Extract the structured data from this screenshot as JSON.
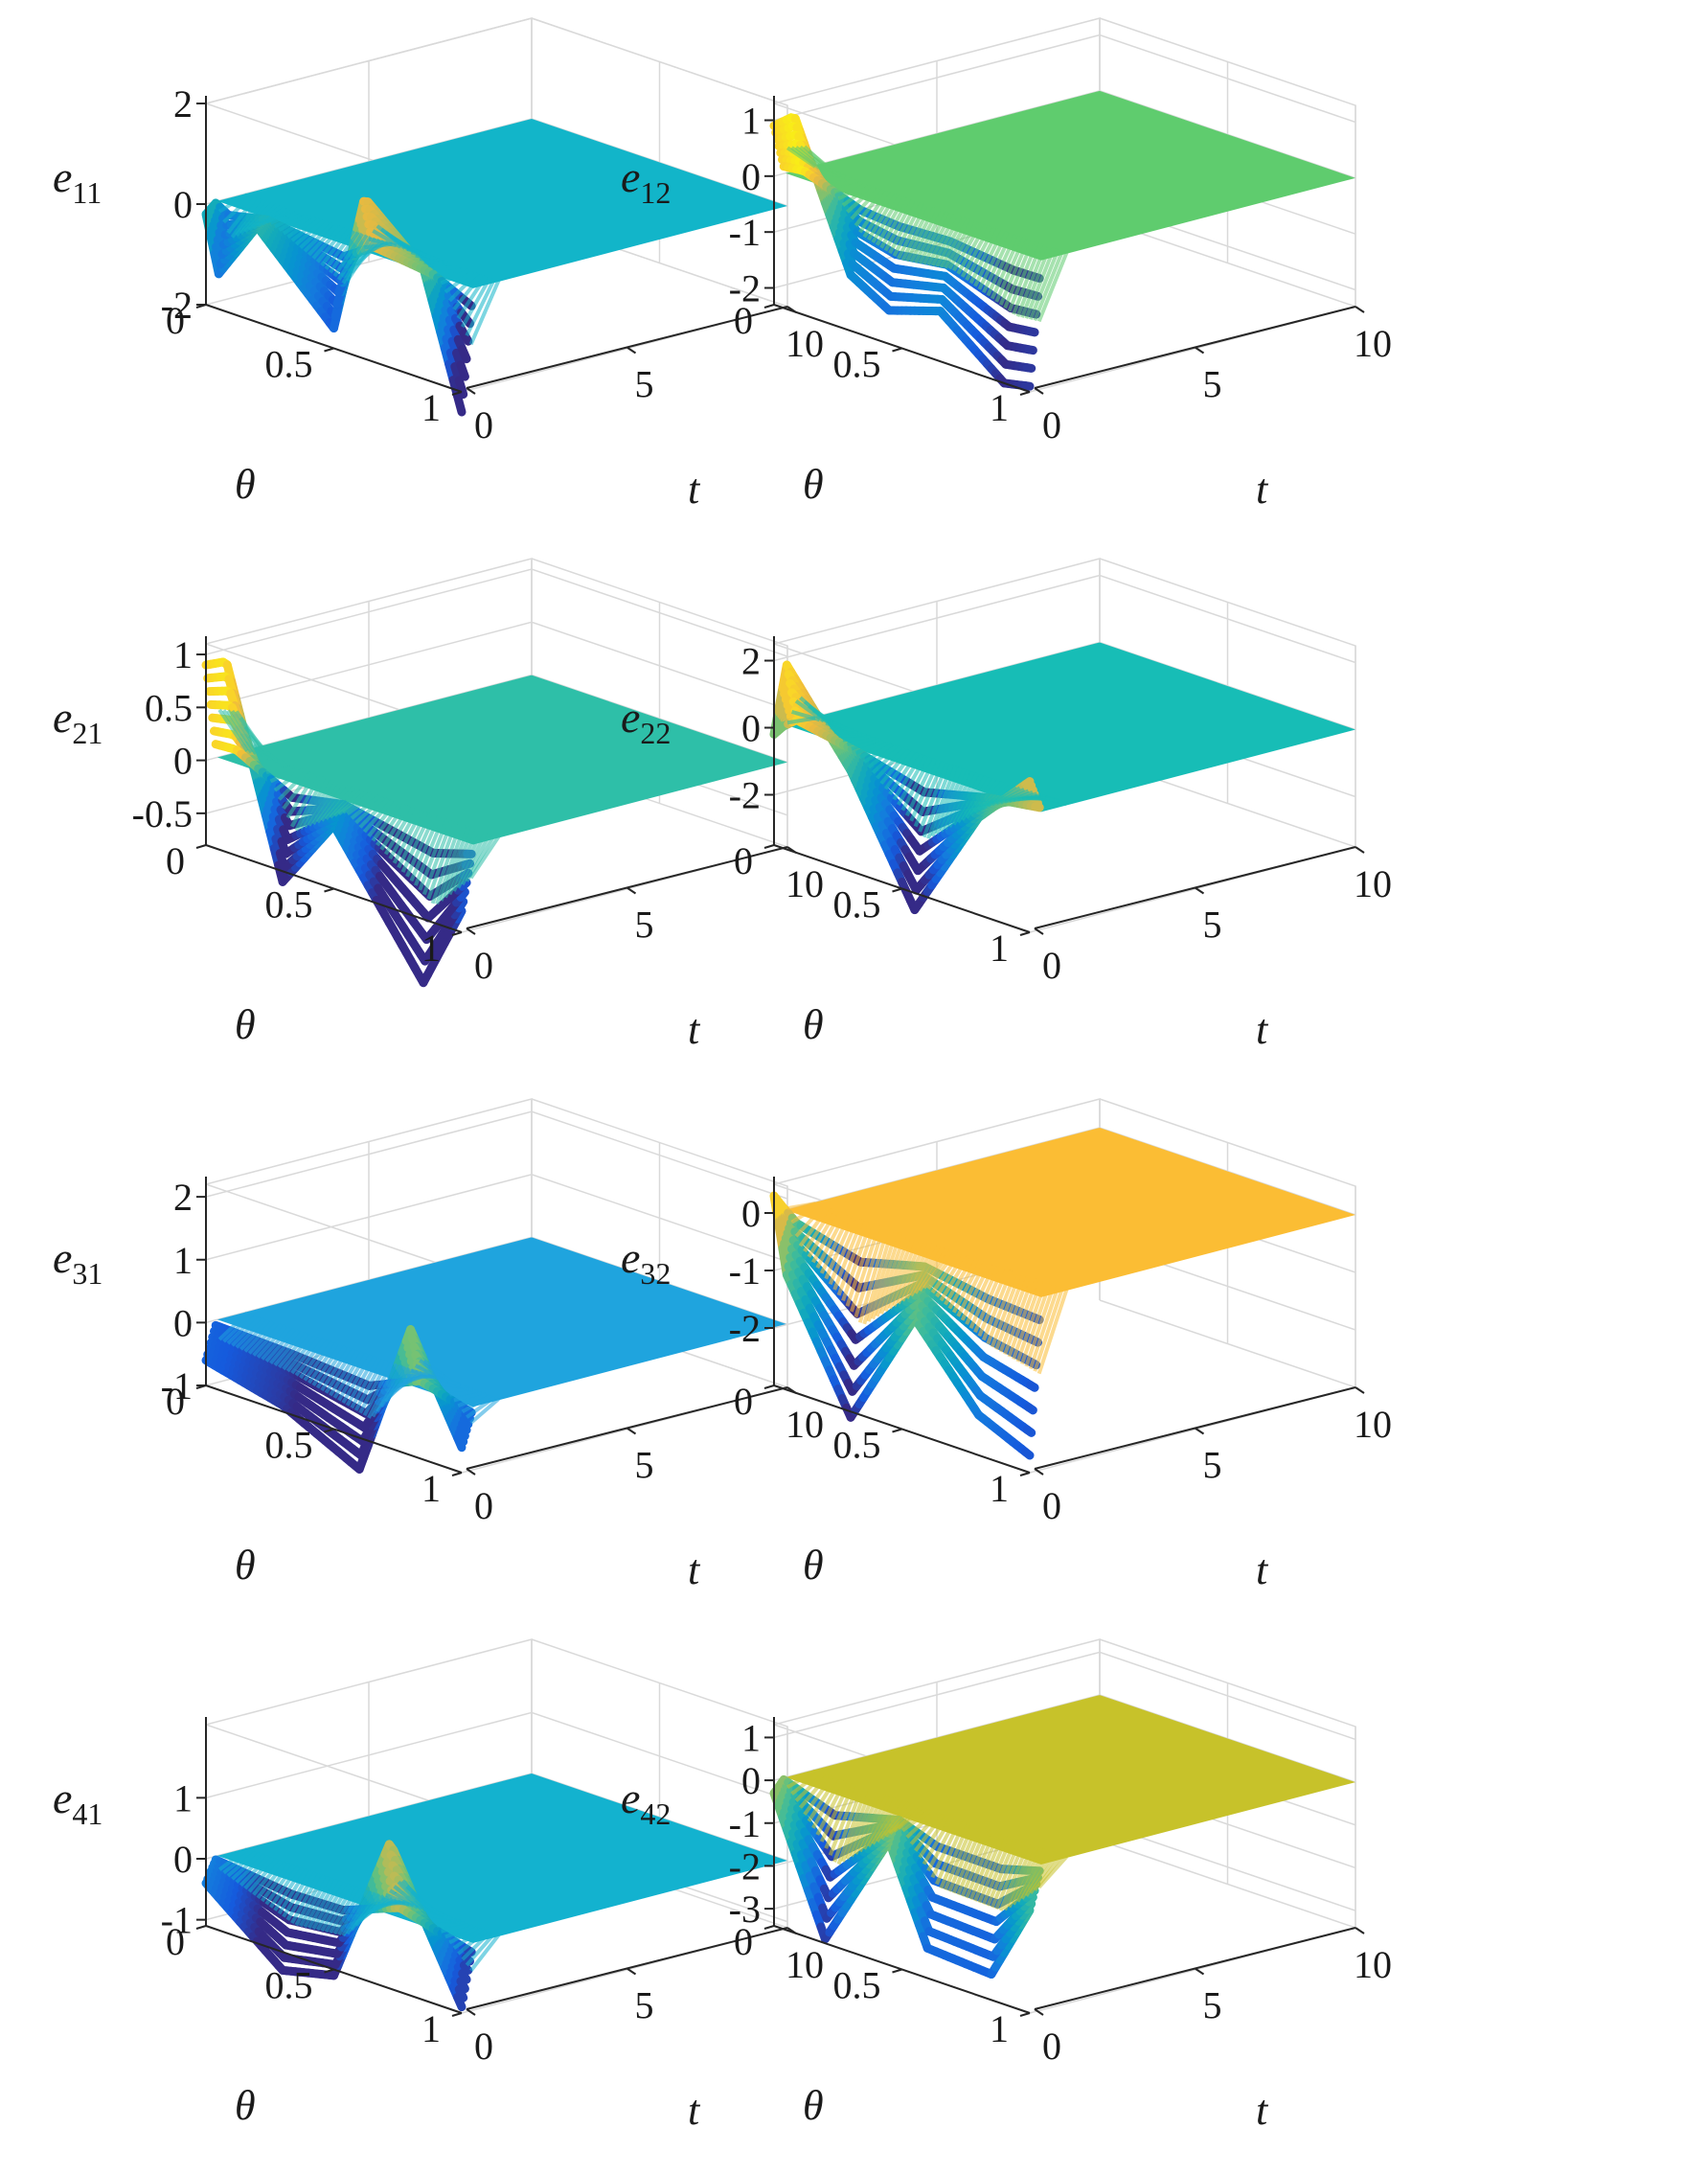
{
  "chart_data": [
    {
      "type": "surface",
      "zlabel_main": "e",
      "zlabel_sub": "11",
      "xlabel": "θ",
      "ylabel": "t",
      "xticks": [
        "0",
        "0.5",
        "1"
      ],
      "yticks": [
        "0",
        "5",
        "10"
      ],
      "zticks": [
        "-2",
        "0",
        "2"
      ],
      "xlim": [
        0,
        1
      ],
      "ylim": [
        0,
        10
      ],
      "zlim": [
        -2,
        2
      ],
      "steady_value": 0,
      "steady_color": "#12b5c9",
      "initial_profile": {
        "theta": [
          0,
          0.05,
          0.2,
          0.5,
          0.62,
          0.85,
          1
        ],
        "values": [
          -0.2,
          -1.3,
          -0.1,
          -1.6,
          1.2,
          0.2,
          -2.4
        ]
      }
    },
    {
      "type": "surface",
      "zlabel_main": "e",
      "zlabel_sub": "12",
      "xlabel": "θ",
      "ylabel": "t",
      "xticks": [
        "0",
        "0.5",
        "1"
      ],
      "yticks": [
        "0",
        "5",
        "10"
      ],
      "zticks": [
        "-2",
        "-1",
        "0",
        "1"
      ],
      "xlim": [
        0,
        1
      ],
      "ylim": [
        0,
        10
      ],
      "zlim": [
        -2.3,
        1.3
      ],
      "steady_value": 0,
      "steady_color": "#5fcc6e",
      "initial_profile": {
        "theta": [
          0,
          0.08,
          0.3,
          0.45,
          0.65,
          0.9,
          1
        ],
        "values": [
          0.9,
          1.2,
          -1.3,
          -1.7,
          -1.4,
          -2.3,
          -2.2
        ]
      }
    },
    {
      "type": "surface",
      "zlabel_main": "e",
      "zlabel_sub": "21",
      "xlabel": "θ",
      "ylabel": "t",
      "xticks": [
        "0",
        "0.5",
        "1"
      ],
      "yticks": [
        "0",
        "5",
        "10"
      ],
      "zticks": [
        "-0.5",
        "0",
        "0.5",
        "1"
      ],
      "xlim": [
        0,
        1
      ],
      "ylim": [
        0,
        10
      ],
      "zlim": [
        -0.8,
        1.1
      ],
      "steady_value": 0,
      "steady_color": "#2ebfa8",
      "initial_profile": {
        "theta": [
          0,
          0.08,
          0.3,
          0.5,
          0.85,
          1
        ],
        "values": [
          0.9,
          1.0,
          -0.9,
          -0.2,
          -1.4,
          -0.6
        ]
      }
    },
    {
      "type": "surface",
      "zlabel_main": "e",
      "zlabel_sub": "22",
      "xlabel": "θ",
      "ylabel": "t",
      "xticks": [
        "0",
        "0.5",
        "1"
      ],
      "yticks": [
        "0",
        "5",
        "10"
      ],
      "zticks": [
        "-2",
        "0",
        "2"
      ],
      "xlim": [
        0,
        1
      ],
      "ylim": [
        0,
        10
      ],
      "zlim": [
        -3.5,
        2.5
      ],
      "steady_value": 0,
      "steady_color": "#17bdb6",
      "initial_profile": {
        "theta": [
          0,
          0.05,
          0.3,
          0.55,
          0.8,
          1
        ],
        "values": [
          -0.2,
          2.0,
          -0.5,
          -4.0,
          -0.6,
          1.0
        ]
      }
    },
    {
      "type": "surface",
      "zlabel_main": "e",
      "zlabel_sub": "31",
      "xlabel": "θ",
      "ylabel": "t",
      "xticks": [
        "0",
        "0.5",
        "1"
      ],
      "yticks": [
        "0",
        "5",
        "10"
      ],
      "zticks": [
        "-1",
        "0",
        "1",
        "2"
      ],
      "xlim": [
        0,
        1
      ],
      "ylim": [
        0,
        10
      ],
      "zlim": [
        -1,
        2.2
      ],
      "steady_value": 0,
      "steady_color": "#1fa4de",
      "initial_profile": {
        "theta": [
          0,
          0.3,
          0.6,
          0.8,
          1
        ],
        "values": [
          -0.6,
          -0.9,
          -1.5,
          1.0,
          -0.6
        ]
      }
    },
    {
      "type": "surface",
      "zlabel_main": "e",
      "zlabel_sub": "32",
      "xlabel": "θ",
      "ylabel": "t",
      "xticks": [
        "0",
        "0.5",
        "1"
      ],
      "yticks": [
        "0",
        "5",
        "10"
      ],
      "zticks": [
        "-2",
        "-1",
        "0"
      ],
      "xlim": [
        0,
        1
      ],
      "ylim": [
        0,
        10
      ],
      "zlim": [
        -3,
        0.5
      ],
      "steady_value": 0,
      "steady_color": "#fbbd34",
      "initial_profile": {
        "theta": [
          0,
          0.05,
          0.3,
          0.55,
          0.8,
          1
        ],
        "values": [
          0.3,
          -1.0,
          -3.1,
          -1.0,
          -2.3,
          -2.7
        ]
      }
    },
    {
      "type": "surface",
      "zlabel_main": "e",
      "zlabel_sub": "41",
      "xlabel": "θ",
      "ylabel": "t",
      "xticks": [
        "0",
        "0.5",
        "1"
      ],
      "yticks": [
        "0",
        "5",
        "10"
      ],
      "zticks": [
        "-1",
        "0",
        "1"
      ],
      "xlim": [
        0,
        1
      ],
      "ylim": [
        0,
        10
      ],
      "zlim": [
        -1.1,
        2.2
      ],
      "steady_value": 0,
      "steady_color": "#13b2cf",
      "initial_profile": {
        "theta": [
          0,
          0.3,
          0.5,
          0.72,
          1
        ],
        "values": [
          -0.4,
          -1.4,
          -1.2,
          1.3,
          -1.0
        ]
      }
    },
    {
      "type": "surface",
      "zlabel_main": "e",
      "zlabel_sub": "42",
      "xlabel": "θ",
      "ylabel": "t",
      "xticks": [
        "0",
        "0.5",
        "1"
      ],
      "yticks": [
        "0",
        "5",
        "10"
      ],
      "zticks": [
        "-3",
        "-2",
        "-1",
        "0",
        "1"
      ],
      "xlim": [
        0,
        1
      ],
      "ylim": [
        0,
        10
      ],
      "zlim": [
        -3.4,
        1.3
      ],
      "steady_value": 0,
      "steady_color": "#c7c22a",
      "initial_profile": {
        "theta": [
          0,
          0.2,
          0.45,
          0.6,
          0.85,
          1
        ],
        "values": [
          -0.3,
          -3.3,
          -0.5,
          -2.7,
          -2.8,
          -1.0
        ]
      }
    }
  ]
}
